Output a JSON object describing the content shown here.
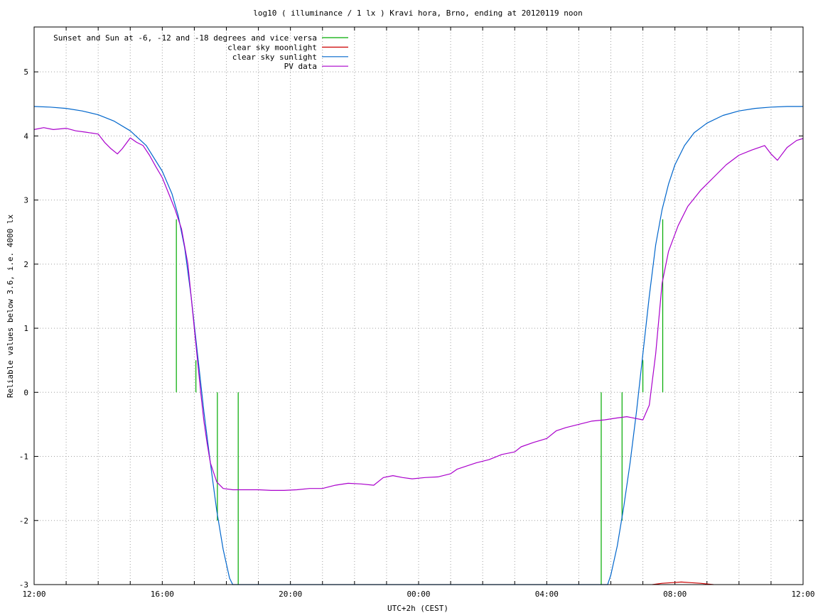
{
  "chart_data": {
    "type": "line",
    "title": "log10 ( illuminance / 1 lx ) Kravi hora, Brno, ending at 20120119 noon",
    "xlabel": "UTC+2h (CEST)",
    "ylabel": "Reliable values below 3.6, i.e. 4000 lx",
    "xlim": [
      0,
      24
    ],
    "ylim": [
      -3,
      5.7
    ],
    "x_unit": "hours after 12:00",
    "x_ticks": [
      {
        "x": 0,
        "label": "12:00"
      },
      {
        "x": 4,
        "label": "16:00"
      },
      {
        "x": 8,
        "label": "20:00"
      },
      {
        "x": 12,
        "label": "00:00"
      },
      {
        "x": 16,
        "label": "04:00"
      },
      {
        "x": 20,
        "label": "08:00"
      },
      {
        "x": 24,
        "label": "12:00"
      }
    ],
    "y_ticks": [
      -3,
      -2,
      -1,
      0,
      1,
      2,
      3,
      4,
      5
    ],
    "grid": true,
    "legend_position": "top-left",
    "series": [
      {
        "name": "Sunset and Sun at -6, -12 and -18 degrees and vice versa",
        "color": "#00aa00",
        "kind": "vertical-markers",
        "markers": [
          {
            "x": 4.44,
            "y_from": 0,
            "y_to": 2.7
          },
          {
            "x": 5.05,
            "y_from": 0,
            "y_to": 0.5
          },
          {
            "x": 5.72,
            "y_from": 0,
            "y_to": -2.0
          },
          {
            "x": 6.37,
            "y_from": 0,
            "y_to": -3.0
          },
          {
            "x": 17.7,
            "y_from": 0,
            "y_to": -3.0
          },
          {
            "x": 18.35,
            "y_from": 0,
            "y_to": -2.0
          },
          {
            "x": 19.0,
            "y_from": 0,
            "y_to": 0.5
          },
          {
            "x": 19.62,
            "y_from": 0,
            "y_to": 2.7
          }
        ]
      },
      {
        "name": "clear sky moonlight",
        "color": "#cc0000",
        "points": [
          [
            19.3,
            -3.0
          ],
          [
            19.6,
            -2.98
          ],
          [
            19.9,
            -2.97
          ],
          [
            20.2,
            -2.96
          ],
          [
            20.5,
            -2.97
          ],
          [
            20.8,
            -2.98
          ],
          [
            21.2,
            -3.0
          ]
        ]
      },
      {
        "name": "clear sky sunlight",
        "color": "#0066cc",
        "points": [
          [
            0,
            4.46
          ],
          [
            0.5,
            4.45
          ],
          [
            1.0,
            4.43
          ],
          [
            1.5,
            4.39
          ],
          [
            2.0,
            4.33
          ],
          [
            2.5,
            4.23
          ],
          [
            3.0,
            4.08
          ],
          [
            3.5,
            3.85
          ],
          [
            4.0,
            3.45
          ],
          [
            4.3,
            3.1
          ],
          [
            4.5,
            2.75
          ],
          [
            4.7,
            2.25
          ],
          [
            4.9,
            1.5
          ],
          [
            5.1,
            0.6
          ],
          [
            5.3,
            -0.3
          ],
          [
            5.5,
            -1.1
          ],
          [
            5.7,
            -1.85
          ],
          [
            5.9,
            -2.45
          ],
          [
            6.1,
            -2.9
          ],
          [
            6.2,
            -3.0
          ],
          [
            17.9,
            -3.0
          ],
          [
            18.0,
            -2.85
          ],
          [
            18.2,
            -2.4
          ],
          [
            18.4,
            -1.8
          ],
          [
            18.6,
            -1.1
          ],
          [
            18.8,
            -0.3
          ],
          [
            19.0,
            0.6
          ],
          [
            19.2,
            1.5
          ],
          [
            19.4,
            2.3
          ],
          [
            19.6,
            2.85
          ],
          [
            19.8,
            3.25
          ],
          [
            20.0,
            3.55
          ],
          [
            20.3,
            3.85
          ],
          [
            20.6,
            4.05
          ],
          [
            21.0,
            4.2
          ],
          [
            21.5,
            4.32
          ],
          [
            22.0,
            4.39
          ],
          [
            22.5,
            4.43
          ],
          [
            23.0,
            4.45
          ],
          [
            23.5,
            4.46
          ],
          [
            24,
            4.46
          ]
        ]
      },
      {
        "name": "PV data",
        "color": "#aa00cc",
        "points": [
          [
            0,
            4.1
          ],
          [
            0.3,
            4.13
          ],
          [
            0.6,
            4.1
          ],
          [
            1.0,
            4.12
          ],
          [
            1.3,
            4.08
          ],
          [
            1.6,
            4.06
          ],
          [
            2.0,
            4.03
          ],
          [
            2.2,
            3.9
          ],
          [
            2.4,
            3.8
          ],
          [
            2.6,
            3.72
          ],
          [
            2.75,
            3.8
          ],
          [
            2.9,
            3.9
          ],
          [
            3.0,
            3.97
          ],
          [
            3.2,
            3.9
          ],
          [
            3.4,
            3.85
          ],
          [
            3.6,
            3.7
          ],
          [
            3.8,
            3.52
          ],
          [
            4.0,
            3.35
          ],
          [
            4.2,
            3.1
          ],
          [
            4.4,
            2.85
          ],
          [
            4.6,
            2.55
          ],
          [
            4.8,
            2.0
          ],
          [
            4.9,
            1.5
          ],
          [
            5.0,
            1.0
          ],
          [
            5.1,
            0.5
          ],
          [
            5.2,
            0.0
          ],
          [
            5.3,
            -0.45
          ],
          [
            5.4,
            -0.8
          ],
          [
            5.5,
            -1.1
          ],
          [
            5.7,
            -1.4
          ],
          [
            5.9,
            -1.5
          ],
          [
            6.2,
            -1.52
          ],
          [
            6.6,
            -1.52
          ],
          [
            7.0,
            -1.52
          ],
          [
            7.4,
            -1.53
          ],
          [
            7.8,
            -1.53
          ],
          [
            8.2,
            -1.52
          ],
          [
            8.6,
            -1.5
          ],
          [
            9.0,
            -1.5
          ],
          [
            9.4,
            -1.45
          ],
          [
            9.8,
            -1.42
          ],
          [
            10.2,
            -1.43
          ],
          [
            10.6,
            -1.45
          ],
          [
            10.9,
            -1.33
          ],
          [
            11.2,
            -1.3
          ],
          [
            11.5,
            -1.33
          ],
          [
            11.8,
            -1.35
          ],
          [
            12.2,
            -1.33
          ],
          [
            12.6,
            -1.32
          ],
          [
            13.0,
            -1.27
          ],
          [
            13.2,
            -1.2
          ],
          [
            13.5,
            -1.15
          ],
          [
            13.8,
            -1.1
          ],
          [
            14.2,
            -1.05
          ],
          [
            14.6,
            -0.97
          ],
          [
            15.0,
            -0.93
          ],
          [
            15.2,
            -0.85
          ],
          [
            15.6,
            -0.78
          ],
          [
            16.0,
            -0.72
          ],
          [
            16.3,
            -0.6
          ],
          [
            16.6,
            -0.55
          ],
          [
            17.0,
            -0.5
          ],
          [
            17.4,
            -0.45
          ],
          [
            17.8,
            -0.43
          ],
          [
            18.2,
            -0.4
          ],
          [
            18.5,
            -0.38
          ],
          [
            18.8,
            -0.41
          ],
          [
            19.0,
            -0.43
          ],
          [
            19.2,
            -0.2
          ],
          [
            19.4,
            0.6
          ],
          [
            19.6,
            1.7
          ],
          [
            19.8,
            2.2
          ],
          [
            20.1,
            2.6
          ],
          [
            20.4,
            2.9
          ],
          [
            20.8,
            3.15
          ],
          [
            21.2,
            3.35
          ],
          [
            21.6,
            3.55
          ],
          [
            22.0,
            3.7
          ],
          [
            22.4,
            3.78
          ],
          [
            22.8,
            3.85
          ],
          [
            23.0,
            3.72
          ],
          [
            23.2,
            3.62
          ],
          [
            23.5,
            3.82
          ],
          [
            23.8,
            3.93
          ],
          [
            24,
            3.96
          ]
        ]
      }
    ]
  }
}
